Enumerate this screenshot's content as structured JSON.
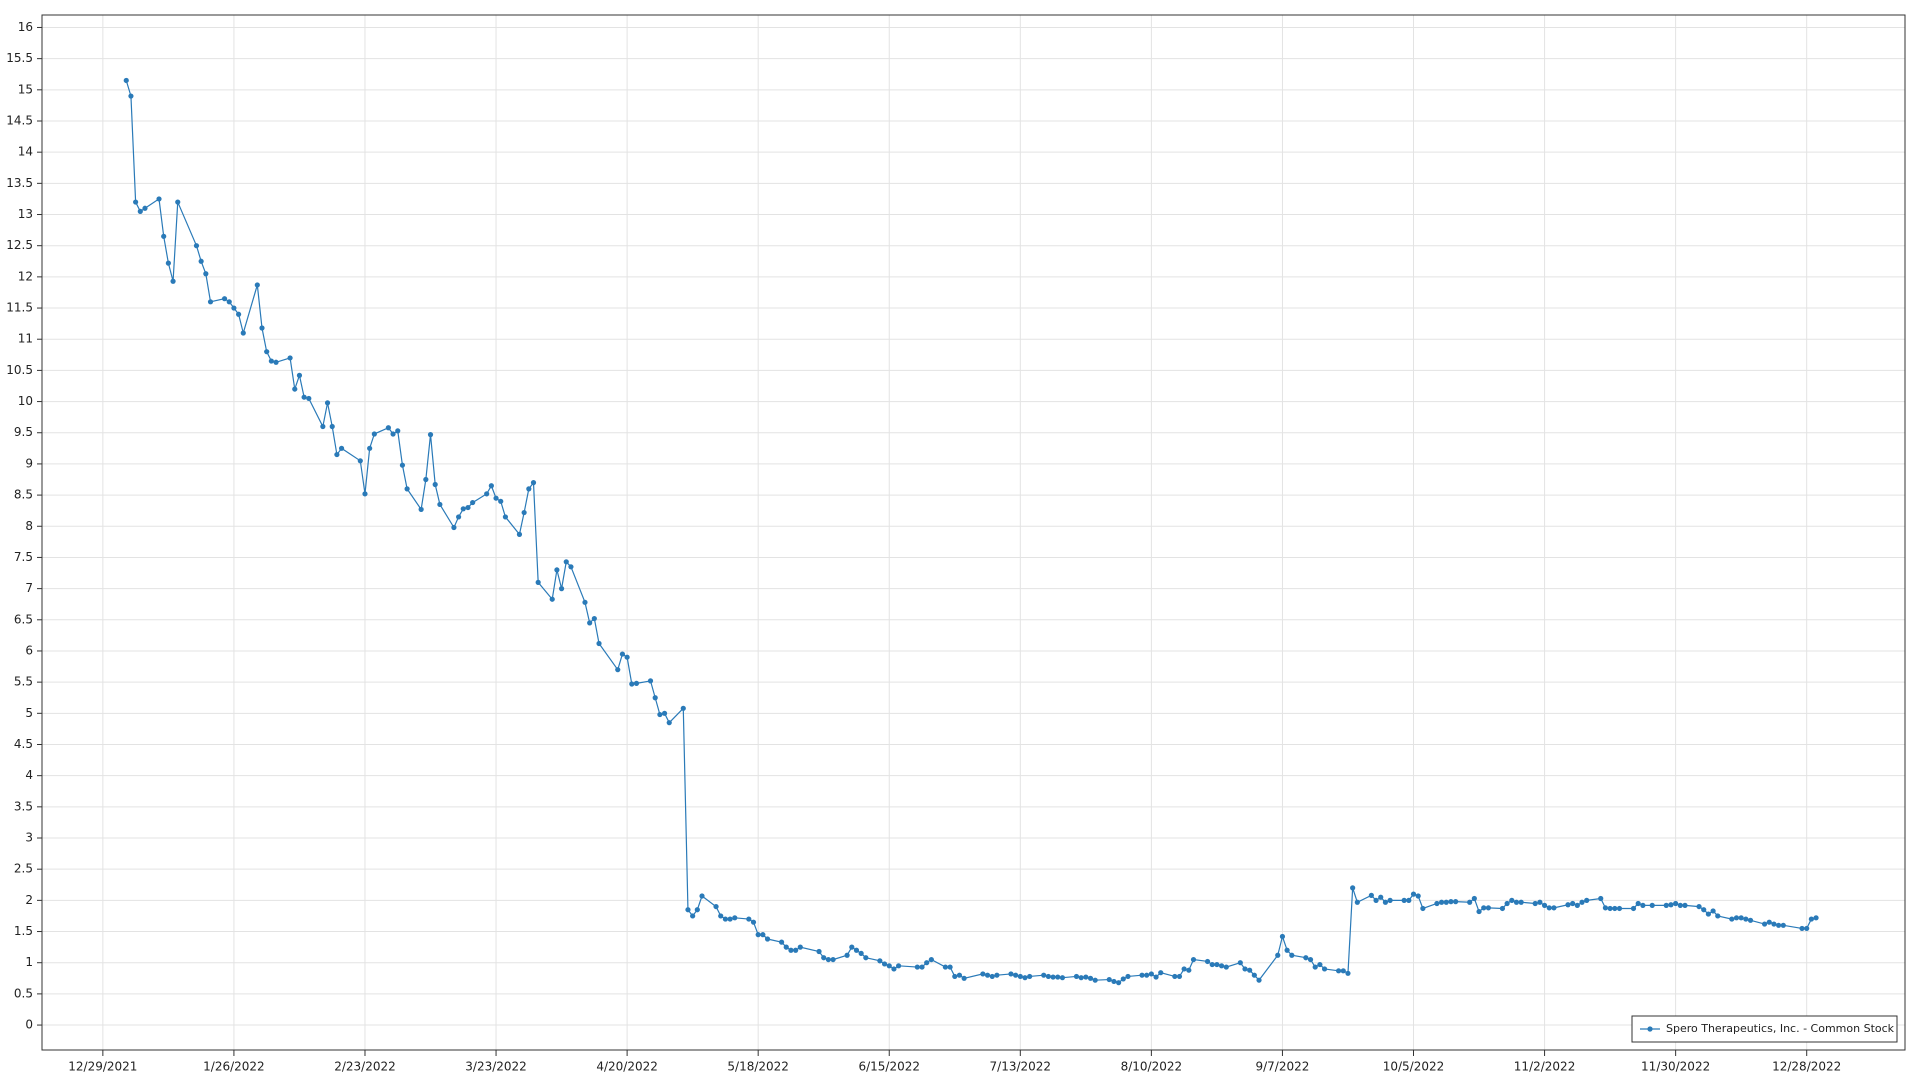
{
  "chart_data": {
    "type": "line",
    "xlim": [
      "12/16/2021",
      "1/18/2023"
    ],
    "xticks": [
      "12/29/2021",
      "1/26/2022",
      "2/23/2022",
      "3/23/2022",
      "4/20/2022",
      "5/18/2022",
      "6/15/2022",
      "7/13/2022",
      "8/10/2022",
      "9/7/2022",
      "10/5/2022",
      "11/2/2022",
      "11/30/2022",
      "12/28/2022"
    ],
    "ylim": [
      -0.4,
      16.2
    ],
    "yticks": [
      0,
      0.5,
      1,
      1.5,
      2,
      2.5,
      3,
      3.5,
      4,
      4.5,
      5,
      5.5,
      6,
      6.5,
      7,
      7.5,
      8,
      8.5,
      9,
      9.5,
      10,
      10.5,
      11,
      11.5,
      12,
      12.5,
      13,
      13.5,
      14,
      14.5,
      15,
      15.5,
      16
    ],
    "grid": true,
    "legend": "lower right",
    "x": [
      "1/3/2022",
      "1/4/2022",
      "1/5/2022",
      "1/6/2022",
      "1/7/2022",
      "1/10/2022",
      "1/11/2022",
      "1/12/2022",
      "1/13/2022",
      "1/14/2022",
      "1/18/2022",
      "1/19/2022",
      "1/20/2022",
      "1/21/2022",
      "1/24/2022",
      "1/25/2022",
      "1/26/2022",
      "1/27/2022",
      "1/28/2022",
      "1/31/2022",
      "2/1/2022",
      "2/2/2022",
      "2/3/2022",
      "2/4/2022",
      "2/7/2022",
      "2/8/2022",
      "2/9/2022",
      "2/10/2022",
      "2/11/2022",
      "2/14/2022",
      "2/15/2022",
      "2/16/2022",
      "2/17/2022",
      "2/18/2022",
      "2/22/2022",
      "2/23/2022",
      "2/24/2022",
      "2/25/2022",
      "2/28/2022",
      "3/1/2022",
      "3/2/2022",
      "3/3/2022",
      "3/4/2022",
      "3/7/2022",
      "3/8/2022",
      "3/9/2022",
      "3/10/2022",
      "3/11/2022",
      "3/14/2022",
      "3/15/2022",
      "3/16/2022",
      "3/17/2022",
      "3/18/2022",
      "3/21/2022",
      "3/22/2022",
      "3/23/2022",
      "3/24/2022",
      "3/25/2022",
      "3/28/2022",
      "3/29/2022",
      "3/30/2022",
      "3/31/2022",
      "4/1/2022",
      "4/4/2022",
      "4/5/2022",
      "4/6/2022",
      "4/7/2022",
      "4/8/2022",
      "4/11/2022",
      "4/12/2022",
      "4/13/2022",
      "4/14/2022",
      "4/18/2022",
      "4/19/2022",
      "4/20/2022",
      "4/21/2022",
      "4/22/2022",
      "4/25/2022",
      "4/26/2022",
      "4/27/2022",
      "4/28/2022",
      "4/29/2022",
      "5/2/2022",
      "5/3/2022",
      "5/4/2022",
      "5/5/2022",
      "5/6/2022",
      "5/9/2022",
      "5/10/2022",
      "5/11/2022",
      "5/12/2022",
      "5/13/2022",
      "5/16/2022",
      "5/17/2022",
      "5/18/2022",
      "5/19/2022",
      "5/20/2022",
      "5/23/2022",
      "5/24/2022",
      "5/25/2022",
      "5/26/2022",
      "5/27/2022",
      "5/31/2022",
      "6/1/2022",
      "6/2/2022",
      "6/3/2022",
      "6/6/2022",
      "6/7/2022",
      "6/8/2022",
      "6/9/2022",
      "6/10/2022",
      "6/13/2022",
      "6/14/2022",
      "6/15/2022",
      "6/16/2022",
      "6/17/2022",
      "6/21/2022",
      "6/22/2022",
      "6/23/2022",
      "6/24/2022",
      "6/27/2022",
      "6/28/2022",
      "6/29/2022",
      "6/30/2022",
      "7/1/2022",
      "7/5/2022",
      "7/6/2022",
      "7/7/2022",
      "7/8/2022",
      "7/11/2022",
      "7/12/2022",
      "7/13/2022",
      "7/14/2022",
      "7/15/2022",
      "7/18/2022",
      "7/19/2022",
      "7/20/2022",
      "7/21/2022",
      "7/22/2022",
      "7/25/2022",
      "7/26/2022",
      "7/27/2022",
      "7/28/2022",
      "7/29/2022",
      "8/1/2022",
      "8/2/2022",
      "8/3/2022",
      "8/4/2022",
      "8/5/2022",
      "8/8/2022",
      "8/9/2022",
      "8/10/2022",
      "8/11/2022",
      "8/12/2022",
      "8/15/2022",
      "8/16/2022",
      "8/17/2022",
      "8/18/2022",
      "8/19/2022",
      "8/22/2022",
      "8/23/2022",
      "8/24/2022",
      "8/25/2022",
      "8/26/2022",
      "8/29/2022",
      "8/30/2022",
      "8/31/2022",
      "9/1/2022",
      "9/2/2022",
      "9/6/2022",
      "9/7/2022",
      "9/8/2022",
      "9/9/2022",
      "9/12/2022",
      "9/13/2022",
      "9/14/2022",
      "9/15/2022",
      "9/16/2022",
      "9/19/2022",
      "9/20/2022",
      "9/21/2022",
      "9/22/2022",
      "9/23/2022",
      "9/26/2022",
      "9/27/2022",
      "9/28/2022",
      "9/29/2022",
      "9/30/2022",
      "10/3/2022",
      "10/4/2022",
      "10/5/2022",
      "10/6/2022",
      "10/7/2022",
      "10/10/2022",
      "10/11/2022",
      "10/12/2022",
      "10/13/2022",
      "10/14/2022",
      "10/17/2022",
      "10/18/2022",
      "10/19/2022",
      "10/20/2022",
      "10/21/2022",
      "10/24/2022",
      "10/25/2022",
      "10/26/2022",
      "10/27/2022",
      "10/28/2022",
      "10/31/2022",
      "11/1/2022",
      "11/2/2022",
      "11/3/2022",
      "11/4/2022",
      "11/7/2022",
      "11/8/2022",
      "11/9/2022",
      "11/10/2022",
      "11/11/2022",
      "11/14/2022",
      "11/15/2022",
      "11/16/2022",
      "11/17/2022",
      "11/18/2022",
      "11/21/2022",
      "11/22/2022",
      "11/23/2022",
      "11/25/2022",
      "11/28/2022",
      "11/29/2022",
      "11/30/2022",
      "12/1/2022",
      "12/2/2022",
      "12/5/2022",
      "12/6/2022",
      "12/7/2022",
      "12/8/2022",
      "12/9/2022",
      "12/12/2022",
      "12/13/2022",
      "12/14/2022",
      "12/15/2022",
      "12/16/2022",
      "12/19/2022",
      "12/20/2022",
      "12/21/2022",
      "12/22/2022",
      "12/23/2022",
      "12/27/2022",
      "12/28/2022",
      "12/29/2022",
      "12/30/2022"
    ],
    "series": [
      {
        "name": "Spero Therapeutics, Inc. - Common Stock",
        "color": "#2a7ab8",
        "values": [
          15.15,
          14.9,
          13.2,
          13.05,
          13.1,
          13.25,
          12.65,
          12.22,
          11.93,
          13.2,
          12.5,
          12.25,
          12.05,
          11.6,
          11.65,
          11.6,
          11.5,
          11.4,
          11.1,
          11.87,
          11.18,
          10.8,
          10.65,
          10.63,
          10.7,
          10.2,
          10.42,
          10.07,
          10.05,
          9.6,
          9.98,
          9.6,
          9.15,
          9.25,
          9.05,
          8.52,
          9.25,
          9.48,
          9.58,
          9.48,
          9.53,
          8.98,
          8.6,
          8.27,
          8.75,
          9.47,
          8.67,
          8.35,
          7.98,
          8.15,
          8.28,
          8.3,
          8.38,
          8.52,
          8.65,
          8.45,
          8.4,
          8.15,
          7.87,
          8.22,
          8.6,
          8.7,
          7.1,
          6.83,
          7.3,
          7.0,
          7.43,
          7.35,
          6.78,
          6.45,
          6.52,
          6.12,
          5.7,
          5.95,
          5.9,
          5.47,
          5.48,
          5.52,
          5.25,
          4.98,
          5.0,
          4.85,
          5.08,
          1.85,
          1.75,
          1.85,
          2.07,
          1.9,
          1.75,
          1.7,
          1.7,
          1.72,
          1.7,
          1.65,
          1.45,
          1.45,
          1.38,
          1.33,
          1.25,
          1.2,
          1.2,
          1.25,
          1.18,
          1.08,
          1.05,
          1.05,
          1.12,
          1.25,
          1.2,
          1.15,
          1.08,
          1.03,
          0.98,
          0.95,
          0.9,
          0.95,
          0.93,
          0.93,
          1.0,
          1.05,
          0.93,
          0.93,
          0.78,
          0.8,
          0.75,
          0.82,
          0.8,
          0.78,
          0.8,
          0.82,
          0.8,
          0.78,
          0.76,
          0.78,
          0.8,
          0.78,
          0.77,
          0.77,
          0.76,
          0.78,
          0.76,
          0.77,
          0.75,
          0.72,
          0.73,
          0.7,
          0.68,
          0.74,
          0.78,
          0.8,
          0.8,
          0.82,
          0.77,
          0.84,
          0.78,
          0.78,
          0.9,
          0.88,
          1.05,
          1.02,
          0.97,
          0.97,
          0.95,
          0.93,
          1.0,
          0.9,
          0.88,
          0.8,
          0.72,
          1.12,
          1.42,
          1.2,
          1.12,
          1.08,
          1.05,
          0.93,
          0.97,
          0.9,
          0.87,
          0.87,
          0.83,
          2.2,
          1.97,
          2.08,
          2.0,
          2.05,
          1.97,
          2.0,
          2.0,
          2.0,
          2.1,
          2.07,
          1.87,
          1.95,
          1.97,
          1.97,
          1.98,
          1.98,
          1.97,
          2.03,
          1.82,
          1.88,
          1.88,
          1.87,
          1.95,
          2.0,
          1.97,
          1.97,
          1.95,
          1.97,
          1.92,
          1.88,
          1.88,
          1.93,
          1.95,
          1.92,
          1.97,
          2.0,
          2.03,
          1.88,
          1.87,
          1.87,
          1.87,
          1.87,
          1.95,
          1.92,
          1.92,
          1.92,
          1.93,
          1.95,
          1.92,
          1.92,
          1.9,
          1.85,
          1.78,
          1.83,
          1.75,
          1.7,
          1.72,
          1.72,
          1.7,
          1.68,
          1.62,
          1.65,
          1.62,
          1.6,
          1.6,
          1.55,
          1.55,
          1.7,
          1.72
        ]
      }
    ]
  }
}
